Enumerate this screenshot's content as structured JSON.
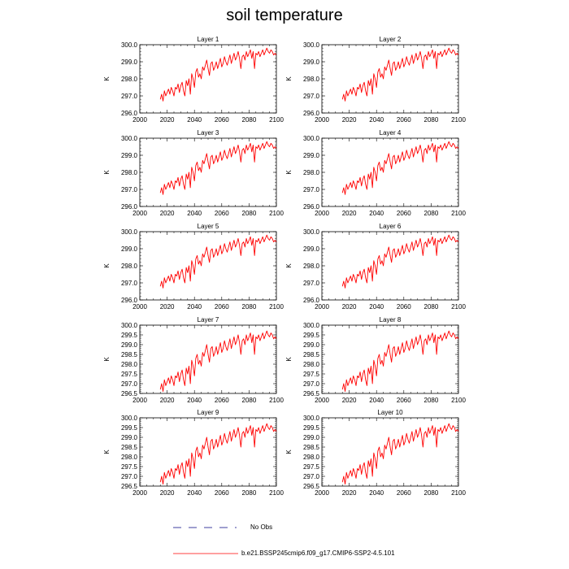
{
  "title": "soil temperature",
  "colors": {
    "model": "#ff0000",
    "obs": "#000080",
    "axis": "#000000"
  },
  "legend": {
    "obs_label": "No Obs",
    "model_label": "b.e21.BSSP245cmip6.f09_g17.CMIP6-SSP2-4.5.101"
  },
  "chart_data": [
    {
      "type": "line",
      "title": "Layer 1",
      "ylabel": "K",
      "xlim": [
        2000,
        2100
      ],
      "ylim": [
        296.0,
        300.0
      ],
      "xticks": [
        "2000",
        "2020",
        "2040",
        "2060",
        "2080",
        "2100"
      ],
      "yticks": [
        "296.0",
        "297.0",
        "298.0",
        "299.0",
        "300.0"
      ],
      "series": [
        {
          "x_start": 2015,
          "x_end": 2100,
          "values": []
        }
      ]
    },
    {
      "type": "line",
      "title": "Layer 2",
      "ylabel": "K",
      "xlim": [
        2000,
        2100
      ],
      "ylim": [
        296.0,
        300.0
      ],
      "xticks": [
        "2000",
        "2020",
        "2040",
        "2060",
        "2080",
        "2100"
      ],
      "yticks": [
        "296.0",
        "297.0",
        "298.0",
        "299.0",
        "300.0"
      ],
      "series": [
        {
          "x_start": 2015,
          "x_end": 2100,
          "values": []
        }
      ]
    },
    {
      "type": "line",
      "title": "Layer 3",
      "ylabel": "K",
      "xlim": [
        2000,
        2100
      ],
      "ylim": [
        296.0,
        300.0
      ],
      "xticks": [
        "2000",
        "2020",
        "2040",
        "2060",
        "2080",
        "2100"
      ],
      "yticks": [
        "296.0",
        "297.0",
        "298.0",
        "299.0",
        "300.0"
      ],
      "series": [
        {
          "x_start": 2015,
          "x_end": 2100,
          "values": []
        }
      ]
    },
    {
      "type": "line",
      "title": "Layer 4",
      "ylabel": "K",
      "xlim": [
        2000,
        2100
      ],
      "ylim": [
        296.0,
        300.0
      ],
      "xticks": [
        "2000",
        "2020",
        "2040",
        "2060",
        "2080",
        "2100"
      ],
      "yticks": [
        "296.0",
        "297.0",
        "298.0",
        "299.0",
        "300.0"
      ],
      "series": [
        {
          "x_start": 2015,
          "x_end": 2100,
          "values": []
        }
      ]
    },
    {
      "type": "line",
      "title": "Layer 5",
      "ylabel": "K",
      "xlim": [
        2000,
        2100
      ],
      "ylim": [
        296.0,
        300.0
      ],
      "xticks": [
        "2000",
        "2020",
        "2040",
        "2060",
        "2080",
        "2100"
      ],
      "yticks": [
        "296.0",
        "297.0",
        "298.0",
        "299.0",
        "300.0"
      ],
      "series": [
        {
          "x_start": 2015,
          "x_end": 2100,
          "values": []
        }
      ]
    },
    {
      "type": "line",
      "title": "Layer 6",
      "ylabel": "K",
      "xlim": [
        2000,
        2100
      ],
      "ylim": [
        296.0,
        300.0
      ],
      "xticks": [
        "2000",
        "2020",
        "2040",
        "2060",
        "2080",
        "2100"
      ],
      "yticks": [
        "296.0",
        "297.0",
        "298.0",
        "299.0",
        "300.0"
      ],
      "series": [
        {
          "x_start": 2015,
          "x_end": 2100,
          "values": []
        }
      ]
    },
    {
      "type": "line",
      "title": "Layer 7",
      "ylabel": "K",
      "xlim": [
        2000,
        2100
      ],
      "ylim": [
        296.5,
        300.0
      ],
      "xticks": [
        "2000",
        "2020",
        "2040",
        "2060",
        "2080",
        "2100"
      ],
      "yticks": [
        "296.5",
        "297.0",
        "297.5",
        "298.0",
        "298.5",
        "299.0",
        "299.5",
        "300.0"
      ],
      "series": [
        {
          "x_start": 2015,
          "x_end": 2100,
          "values": []
        }
      ]
    },
    {
      "type": "line",
      "title": "Layer 8",
      "ylabel": "K",
      "xlim": [
        2000,
        2100
      ],
      "ylim": [
        296.5,
        300.0
      ],
      "xticks": [
        "2000",
        "2020",
        "2040",
        "2060",
        "2080",
        "2100"
      ],
      "yticks": [
        "296.5",
        "297.0",
        "297.5",
        "298.0",
        "298.5",
        "299.0",
        "299.5",
        "300.0"
      ],
      "series": [
        {
          "x_start": 2015,
          "x_end": 2100,
          "values": []
        }
      ]
    },
    {
      "type": "line",
      "title": "Layer 9",
      "ylabel": "K",
      "xlim": [
        2000,
        2100
      ],
      "ylim": [
        296.5,
        300.0
      ],
      "xticks": [
        "2000",
        "2020",
        "2040",
        "2060",
        "2080",
        "2100"
      ],
      "yticks": [
        "296.5",
        "297.0",
        "297.5",
        "298.0",
        "298.5",
        "299.0",
        "299.5",
        "300.0"
      ],
      "series": [
        {
          "x_start": 2015,
          "x_end": 2100,
          "values": []
        }
      ]
    },
    {
      "type": "line",
      "title": "Layer 10",
      "ylabel": "K",
      "xlim": [
        2000,
        2100
      ],
      "ylim": [
        296.5,
        300.0
      ],
      "xticks": [
        "2000",
        "2020",
        "2040",
        "2060",
        "2080",
        "2100"
      ],
      "yticks": [
        "296.5",
        "297.0",
        "297.5",
        "298.0",
        "298.5",
        "299.0",
        "299.5",
        "300.0"
      ],
      "series": [
        {
          "x_start": 2015,
          "x_end": 2100,
          "values": []
        }
      ]
    }
  ]
}
